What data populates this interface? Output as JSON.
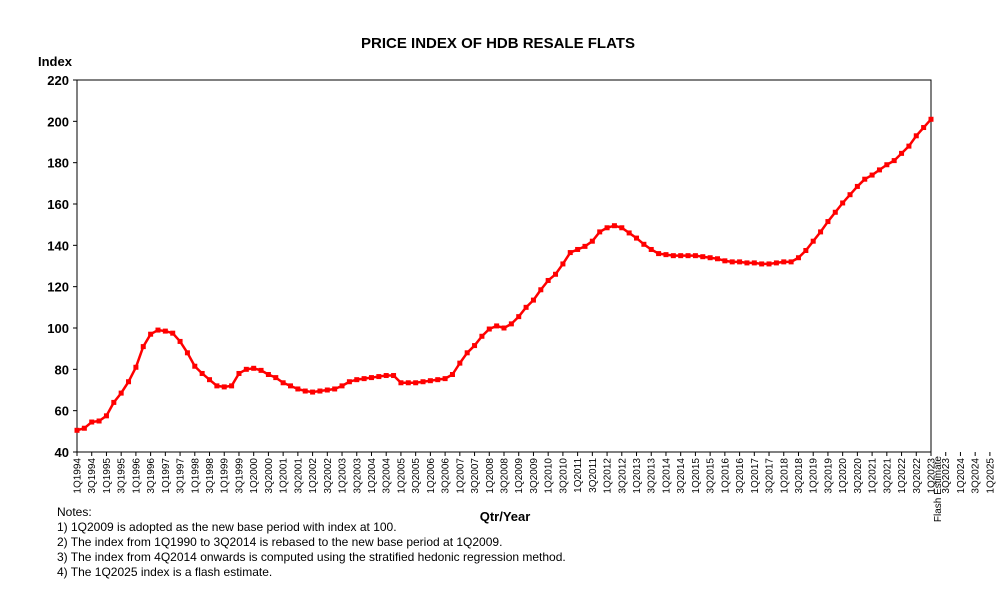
{
  "chart_data": {
    "type": "line",
    "title": "PRICE INDEX OF HDB RESALE FLATS",
    "ylabel": "Index",
    "xlabel": "Qtr/Year",
    "ylim": [
      40,
      220
    ],
    "yticks": [
      40,
      60,
      80,
      100,
      120,
      140,
      160,
      180,
      200,
      220
    ],
    "grid": false,
    "line_color": "#ff0000",
    "x_tick_labels": [
      "1Q1994",
      "3Q1994",
      "1Q1995",
      "3Q1995",
      "1Q1996",
      "3Q1996",
      "1Q1997",
      "3Q1997",
      "1Q1998",
      "3Q1998",
      "1Q1999",
      "3Q1999",
      "1Q2000",
      "3Q2000",
      "1Q2001",
      "3Q2001",
      "1Q2002",
      "3Q2002",
      "1Q2003",
      "3Q2003",
      "1Q2004",
      "3Q2004",
      "1Q2005",
      "3Q2005",
      "1Q2006",
      "3Q2006",
      "1Q2007",
      "3Q2007",
      "1Q2008",
      "3Q2008",
      "1Q2009",
      "3Q2009",
      "1Q2010",
      "3Q2010",
      "1Q2011",
      "3Q2011",
      "1Q2012",
      "3Q2012",
      "1Q2013",
      "3Q2013",
      "1Q2014",
      "3Q2014",
      "1Q2015",
      "3Q2015",
      "1Q2016",
      "3Q2016",
      "1Q2017",
      "3Q2017",
      "1Q2018",
      "3Q2018",
      "1Q2019",
      "3Q2019",
      "1Q2020",
      "3Q2020",
      "1Q2021",
      "3Q2021",
      "1Q2022",
      "3Q2022",
      "1Q2023",
      "3Q2023",
      "1Q2024",
      "3Q2024",
      "1Q2025"
    ],
    "annotation": "Flash Estimate",
    "values": [
      50.5,
      51.5,
      54.5,
      55,
      57.5,
      64,
      68.5,
      74,
      81,
      91,
      97,
      99,
      98.5,
      97.5,
      93.5,
      88,
      81.5,
      78,
      75,
      72,
      71.5,
      72,
      78,
      80,
      80.5,
      79.5,
      77.5,
      76,
      73.5,
      72,
      70.5,
      69.5,
      69,
      69.5,
      70,
      70.5,
      72,
      74,
      75,
      75.5,
      76,
      76.5,
      77,
      77,
      73.5,
      73.5,
      73.5,
      74,
      74.5,
      75,
      75.5,
      77.5,
      83,
      88,
      91.5,
      96,
      99.5,
      101,
      100,
      102,
      105.5,
      110,
      113.5,
      118.5,
      123,
      126,
      131,
      136.5,
      138,
      139.5,
      142,
      146.5,
      148.5,
      149.5,
      148.5,
      146,
      143.5,
      140.5,
      138,
      136,
      135.5,
      135,
      135,
      135,
      135,
      134.5,
      134,
      133.5,
      132.5,
      132,
      132,
      131.5,
      131.5,
      131,
      131,
      131.5,
      132,
      132,
      134,
      137.5,
      142,
      146.5,
      151.5,
      156,
      160.5,
      164.5,
      168.5,
      172,
      174,
      176.5,
      179,
      181,
      184.5,
      188,
      193,
      197,
      201
    ]
  },
  "notes": {
    "heading": "Notes:",
    "items": [
      "1) 1Q2009 is adopted as the new base period with index at 100.",
      "2) The index from 1Q1990 to 3Q2014 is rebased to the new base period at 1Q2009.",
      "3) The index from 4Q2014 onwards is computed using the stratified hedonic regression method.",
      "4) The 1Q2025 index is a flash estimate."
    ]
  }
}
